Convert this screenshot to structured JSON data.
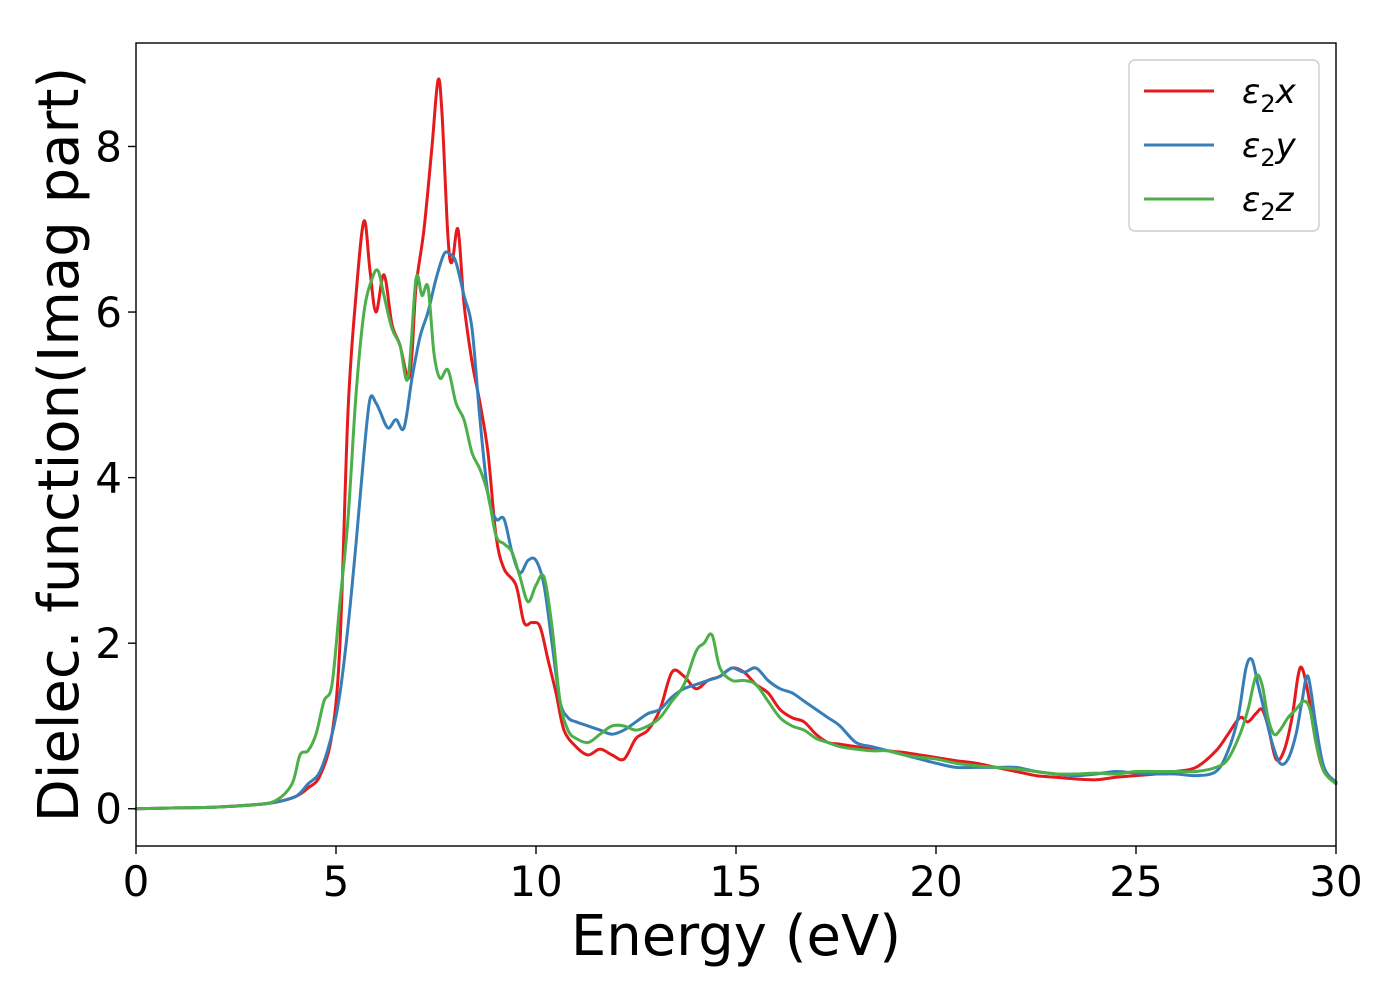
{
  "chart_data": {
    "type": "line",
    "title": "",
    "xlabel": "Energy (eV)",
    "ylabel": "Dielec. function(Imag part)",
    "xlim": [
      0,
      30
    ],
    "ylim": [
      -0.45,
      9.25
    ],
    "xticks": [
      0,
      5,
      10,
      15,
      20,
      25,
      30
    ],
    "xtick_labels": [
      "0",
      "5",
      "10",
      "15",
      "20",
      "25",
      "30"
    ],
    "yticks": [
      0,
      2,
      4,
      6,
      8
    ],
    "ytick_labels": [
      "0",
      "2",
      "4",
      "6",
      "8"
    ],
    "grid": false,
    "legend_position": "top-right",
    "series": [
      {
        "name": "ε₂x",
        "legend_base": "ε",
        "legend_sub": "2",
        "legend_suffix": "x",
        "color": "#e41a1c",
        "x": [
          0,
          1,
          2,
          3,
          3.5,
          4,
          4.3,
          4.6,
          4.9,
          5.1,
          5.3,
          5.5,
          5.7,
          5.85,
          6.0,
          6.2,
          6.4,
          6.6,
          6.8,
          6.9,
          7.0,
          7.2,
          7.4,
          7.55,
          7.65,
          7.8,
          7.9,
          8.05,
          8.2,
          8.4,
          8.6,
          8.8,
          9.0,
          9.2,
          9.5,
          9.7,
          9.9,
          10.1,
          10.3,
          10.5,
          10.7,
          11.0,
          11.3,
          11.6,
          11.9,
          12.2,
          12.5,
          12.8,
          13.1,
          13.4,
          13.7,
          14.0,
          14.3,
          14.6,
          14.9,
          15.2,
          15.5,
          15.8,
          16.1,
          16.4,
          16.7,
          17.0,
          17.3,
          17.6,
          18.0,
          18.4,
          18.8,
          19.2,
          19.6,
          20,
          20.5,
          21,
          21.5,
          22,
          22.5,
          23,
          23.5,
          24,
          24.5,
          25,
          25.5,
          26,
          26.5,
          27,
          27.3,
          27.6,
          27.8,
          28.0,
          28.15,
          28.3,
          28.5,
          28.7,
          28.9,
          29.05,
          29.15,
          29.3,
          29.5,
          29.7,
          30
        ],
        "y": [
          0.0,
          0.01,
          0.02,
          0.05,
          0.08,
          0.15,
          0.25,
          0.4,
          0.9,
          2.0,
          4.8,
          6.2,
          7.1,
          6.5,
          6.0,
          6.45,
          5.85,
          5.6,
          5.2,
          5.5,
          6.3,
          7.0,
          8.0,
          8.8,
          8.4,
          6.9,
          6.6,
          7.0,
          6.1,
          5.4,
          4.9,
          4.3,
          3.3,
          2.9,
          2.7,
          2.25,
          2.25,
          2.2,
          1.8,
          1.4,
          0.95,
          0.75,
          0.65,
          0.72,
          0.65,
          0.6,
          0.85,
          0.95,
          1.2,
          1.65,
          1.6,
          1.45,
          1.55,
          1.6,
          1.7,
          1.65,
          1.5,
          1.4,
          1.2,
          1.1,
          1.05,
          0.9,
          0.8,
          0.78,
          0.75,
          0.72,
          0.7,
          0.68,
          0.65,
          0.62,
          0.58,
          0.55,
          0.5,
          0.45,
          0.4,
          0.38,
          0.36,
          0.35,
          0.38,
          0.4,
          0.42,
          0.45,
          0.5,
          0.7,
          0.9,
          1.1,
          1.05,
          1.15,
          1.2,
          1.0,
          0.6,
          0.7,
          1.1,
          1.6,
          1.7,
          1.4,
          0.8,
          0.45,
          0.32
        ]
      },
      {
        "name": "ε₂y",
        "legend_base": "ε",
        "legend_sub": "2",
        "legend_suffix": "y",
        "color": "#377eb8",
        "x": [
          0,
          1,
          2,
          3,
          3.5,
          4,
          4.3,
          4.6,
          4.9,
          5.1,
          5.3,
          5.5,
          5.7,
          5.85,
          6.0,
          6.1,
          6.3,
          6.5,
          6.7,
          6.9,
          7.1,
          7.3,
          7.5,
          7.7,
          7.85,
          8.0,
          8.2,
          8.4,
          8.6,
          8.8,
          9.0,
          9.2,
          9.4,
          9.6,
          9.8,
          10.0,
          10.2,
          10.4,
          10.6,
          10.8,
          11.0,
          11.3,
          11.6,
          11.9,
          12.2,
          12.5,
          12.8,
          13.1,
          13.4,
          13.7,
          14.0,
          14.3,
          14.6,
          14.9,
          15.2,
          15.5,
          15.8,
          16.1,
          16.4,
          16.7,
          17.0,
          17.3,
          17.6,
          18.0,
          18.4,
          18.8,
          19.2,
          19.6,
          20,
          20.5,
          21,
          21.5,
          22,
          22.5,
          23,
          23.5,
          24,
          24.5,
          25,
          25.5,
          26,
          26.5,
          27,
          27.3,
          27.55,
          27.75,
          27.9,
          28.05,
          28.2,
          28.4,
          28.6,
          28.8,
          29.0,
          29.15,
          29.3,
          29.5,
          29.7,
          30
        ],
        "y": [
          0.0,
          0.01,
          0.02,
          0.05,
          0.08,
          0.15,
          0.3,
          0.45,
          0.9,
          1.4,
          2.2,
          3.2,
          4.3,
          4.95,
          4.9,
          4.8,
          4.6,
          4.7,
          4.6,
          5.2,
          5.7,
          6.0,
          6.4,
          6.7,
          6.7,
          6.6,
          6.2,
          5.8,
          4.7,
          3.8,
          3.5,
          3.5,
          3.1,
          2.85,
          3.0,
          3.0,
          2.7,
          2.0,
          1.3,
          1.1,
          1.05,
          1.0,
          0.95,
          0.9,
          0.95,
          1.05,
          1.15,
          1.2,
          1.35,
          1.45,
          1.5,
          1.55,
          1.6,
          1.7,
          1.65,
          1.7,
          1.55,
          1.45,
          1.4,
          1.3,
          1.2,
          1.1,
          1.0,
          0.8,
          0.75,
          0.7,
          0.65,
          0.6,
          0.55,
          0.5,
          0.5,
          0.5,
          0.5,
          0.45,
          0.42,
          0.4,
          0.42,
          0.45,
          0.43,
          0.42,
          0.42,
          0.4,
          0.45,
          0.7,
          1.1,
          1.7,
          1.8,
          1.5,
          1.2,
          0.8,
          0.55,
          0.6,
          0.9,
          1.3,
          1.6,
          1.0,
          0.5,
          0.32
        ]
      },
      {
        "name": "ε₂z",
        "legend_base": "ε",
        "legend_sub": "2",
        "legend_suffix": "z",
        "color": "#4daf4a",
        "x": [
          0,
          1,
          2,
          3,
          3.5,
          3.9,
          4.1,
          4.3,
          4.5,
          4.7,
          4.9,
          5.1,
          5.3,
          5.5,
          5.7,
          5.9,
          6.05,
          6.2,
          6.4,
          6.6,
          6.8,
          7.0,
          7.15,
          7.3,
          7.45,
          7.6,
          7.8,
          8.0,
          8.2,
          8.4,
          8.6,
          8.8,
          9.0,
          9.2,
          9.4,
          9.6,
          9.8,
          10.0,
          10.2,
          10.4,
          10.6,
          10.8,
          11.0,
          11.3,
          11.6,
          11.9,
          12.2,
          12.5,
          12.8,
          13.1,
          13.4,
          13.7,
          14.0,
          14.2,
          14.4,
          14.6,
          14.9,
          15.2,
          15.5,
          15.8,
          16.1,
          16.4,
          16.7,
          17.0,
          17.3,
          17.6,
          18.0,
          18.4,
          18.8,
          19.2,
          19.6,
          20,
          20.5,
          21,
          21.5,
          22,
          22.5,
          23,
          23.5,
          24,
          24.5,
          25,
          25.5,
          26,
          26.5,
          27,
          27.3,
          27.6,
          27.8,
          28.0,
          28.15,
          28.3,
          28.45,
          28.6,
          28.8,
          29.0,
          29.2,
          29.35,
          29.5,
          29.7,
          30
        ],
        "y": [
          0.0,
          0.01,
          0.02,
          0.05,
          0.1,
          0.3,
          0.65,
          0.7,
          0.9,
          1.3,
          1.5,
          2.5,
          3.5,
          5.0,
          6.0,
          6.4,
          6.5,
          6.2,
          5.8,
          5.6,
          5.2,
          6.4,
          6.2,
          6.3,
          5.5,
          5.2,
          5.3,
          4.9,
          4.7,
          4.3,
          4.1,
          3.8,
          3.3,
          3.2,
          3.1,
          2.8,
          2.5,
          2.7,
          2.8,
          2.2,
          1.3,
          0.95,
          0.85,
          0.8,
          0.9,
          1.0,
          1.0,
          0.95,
          1.0,
          1.1,
          1.3,
          1.5,
          1.9,
          2.0,
          2.1,
          1.7,
          1.55,
          1.55,
          1.5,
          1.3,
          1.1,
          1.0,
          0.95,
          0.85,
          0.8,
          0.75,
          0.72,
          0.7,
          0.7,
          0.65,
          0.62,
          0.6,
          0.55,
          0.52,
          0.5,
          0.48,
          0.45,
          0.42,
          0.42,
          0.43,
          0.42,
          0.45,
          0.45,
          0.45,
          0.45,
          0.5,
          0.6,
          0.9,
          1.2,
          1.6,
          1.5,
          1.1,
          0.9,
          0.95,
          1.1,
          1.2,
          1.3,
          1.2,
          0.8,
          0.45,
          0.3
        ]
      }
    ]
  }
}
